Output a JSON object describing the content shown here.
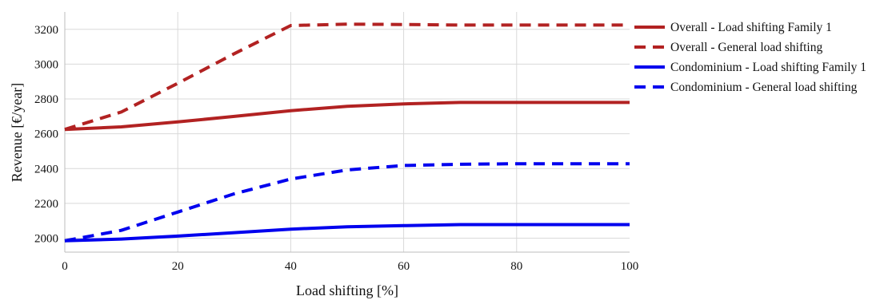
{
  "chart_data": {
    "type": "line",
    "title": "",
    "xlabel": "Load shifting [%]",
    "ylabel": "Revenue [€/year]",
    "xlim": [
      0,
      100
    ],
    "ylim": [
      1920,
      3300
    ],
    "xticks": [
      0,
      20,
      40,
      60,
      80,
      100
    ],
    "yticks": [
      2000,
      2200,
      2400,
      2600,
      2800,
      3000,
      3200
    ],
    "grid": "on",
    "legend_position": "right",
    "x": [
      0,
      10,
      20,
      30,
      40,
      50,
      60,
      70,
      80,
      90,
      100
    ],
    "series": [
      {
        "name": "Overall - Load shifting Family 1",
        "color": "#b22222",
        "style": "solid",
        "values": [
          2625,
          2640,
          2668,
          2700,
          2733,
          2758,
          2772,
          2780,
          2780,
          2780,
          2780
        ]
      },
      {
        "name": "Overall - General load shifting",
        "color": "#b22222",
        "style": "dashed",
        "values": [
          2625,
          2725,
          2890,
          3060,
          3222,
          3230,
          3228,
          3225,
          3225,
          3225,
          3225
        ]
      },
      {
        "name": "Condominium - Load shifting Family 1",
        "color": "#0000ee",
        "style": "solid",
        "values": [
          1985,
          1995,
          2012,
          2032,
          2052,
          2066,
          2072,
          2078,
          2078,
          2078,
          2078
        ]
      },
      {
        "name": "Condominium - General load shifting",
        "color": "#0000ee",
        "style": "dashed",
        "values": [
          1985,
          2045,
          2150,
          2255,
          2340,
          2392,
          2418,
          2425,
          2428,
          2428,
          2428
        ]
      }
    ]
  }
}
